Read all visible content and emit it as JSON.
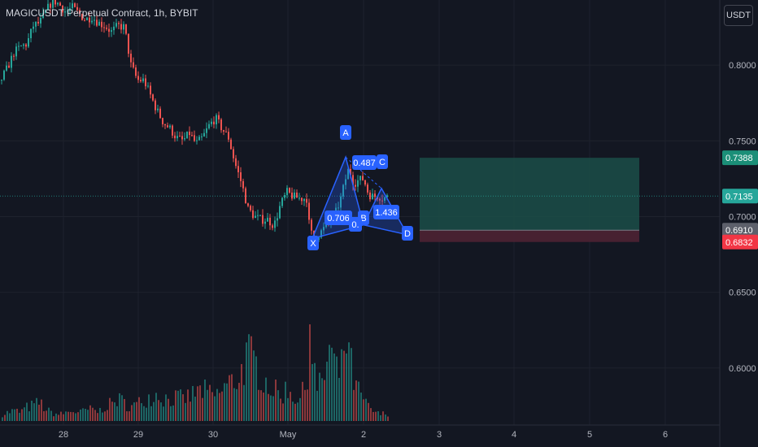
{
  "header": {
    "title": "MAGICUSDT Perpetual Contract, 1h, BYBIT",
    "unit": "USDT"
  },
  "colors": {
    "background": "#131722",
    "grid": "#1e222d",
    "up": "#26a69a",
    "down": "#ef5350",
    "pattern": "#2962ff",
    "target_zone": "#1b4d48",
    "stop_zone": "#4a2233"
  },
  "chart_data": {
    "type": "candlestick",
    "title": "MAGICUSDT Perpetual Contract, 1h, BYBIT",
    "ylim": [
      0.565,
      0.843
    ],
    "y_ticks": [
      "0.8000",
      "0.7500",
      "0.7000",
      "0.6500",
      "0.6000"
    ],
    "x_ticks": [
      "28",
      "29",
      "30",
      "May",
      "2",
      "3",
      "4",
      "5",
      "6"
    ],
    "price_path": [
      [
        0,
        0.79
      ],
      [
        8,
        0.798
      ],
      [
        16,
        0.808
      ],
      [
        24,
        0.812
      ],
      [
        32,
        0.814
      ],
      [
        40,
        0.826
      ],
      [
        48,
        0.828
      ],
      [
        56,
        0.836
      ],
      [
        64,
        0.843
      ],
      [
        72,
        0.84
      ],
      [
        80,
        0.835
      ],
      [
        88,
        0.838
      ],
      [
        96,
        0.834
      ],
      [
        104,
        0.83
      ],
      [
        112,
        0.832
      ],
      [
        120,
        0.828
      ],
      [
        128,
        0.826
      ],
      [
        136,
        0.822
      ],
      [
        144,
        0.826
      ],
      [
        152,
        0.825
      ],
      [
        160,
        0.8
      ],
      [
        168,
        0.79
      ],
      [
        176,
        0.79
      ],
      [
        184,
        0.78
      ],
      [
        192,
        0.77
      ],
      [
        200,
        0.762
      ],
      [
        208,
        0.758
      ],
      [
        216,
        0.752
      ],
      [
        224,
        0.75
      ],
      [
        232,
        0.755
      ],
      [
        240,
        0.748
      ],
      [
        248,
        0.752
      ],
      [
        256,
        0.76
      ],
      [
        264,
        0.765
      ],
      [
        272,
        0.758
      ],
      [
        280,
        0.752
      ],
      [
        288,
        0.735
      ],
      [
        296,
        0.722
      ],
      [
        304,
        0.705
      ],
      [
        312,
        0.7
      ],
      [
        320,
        0.698
      ],
      [
        328,
        0.698
      ],
      [
        336,
        0.694
      ],
      [
        344,
        0.708
      ],
      [
        352,
        0.716
      ],
      [
        360,
        0.713
      ],
      [
        368,
        0.712
      ],
      [
        376,
        0.712
      ],
      [
        380,
        0.69
      ],
      [
        386,
        0.686
      ],
      [
        394,
        0.69
      ],
      [
        402,
        0.695
      ],
      [
        410,
        0.7
      ],
      [
        418,
        0.712
      ],
      [
        424,
        0.725
      ],
      [
        428,
        0.732
      ],
      [
        434,
        0.722
      ],
      [
        440,
        0.724
      ],
      [
        446,
        0.725
      ],
      [
        452,
        0.715
      ],
      [
        458,
        0.713
      ],
      [
        464,
        0.714
      ],
      [
        470,
        0.712
      ],
      [
        476,
        0.713
      ]
    ],
    "volume_bars": [
      [
        0,
        9
      ],
      [
        8,
        13
      ],
      [
        16,
        16
      ],
      [
        24,
        14
      ],
      [
        32,
        21
      ],
      [
        40,
        24
      ],
      [
        48,
        29
      ],
      [
        56,
        17
      ],
      [
        64,
        12
      ],
      [
        72,
        10
      ],
      [
        80,
        13
      ],
      [
        88,
        16
      ],
      [
        96,
        12
      ],
      [
        104,
        17
      ],
      [
        112,
        18
      ],
      [
        120,
        14
      ],
      [
        128,
        23
      ],
      [
        136,
        26
      ],
      [
        144,
        34
      ],
      [
        152,
        28
      ],
      [
        160,
        22
      ],
      [
        168,
        26
      ],
      [
        176,
        34
      ],
      [
        184,
        38
      ],
      [
        192,
        42
      ],
      [
        200,
        36
      ],
      [
        208,
        34
      ],
      [
        216,
        36
      ],
      [
        224,
        34
      ],
      [
        232,
        38
      ],
      [
        240,
        44
      ],
      [
        248,
        48
      ],
      [
        256,
        42
      ],
      [
        264,
        38
      ],
      [
        272,
        48
      ],
      [
        280,
        58
      ],
      [
        288,
        62
      ],
      [
        296,
        78
      ],
      [
        304,
        102
      ],
      [
        312,
        88
      ],
      [
        320,
        74
      ],
      [
        328,
        58
      ],
      [
        336,
        48
      ],
      [
        344,
        38
      ],
      [
        352,
        52
      ],
      [
        360,
        38
      ],
      [
        368,
        34
      ],
      [
        376,
        58
      ],
      [
        380,
        162
      ],
      [
        384,
        98
      ],
      [
        388,
        48
      ],
      [
        396,
        60
      ],
      [
        404,
        112
      ],
      [
        412,
        80
      ],
      [
        418,
        66
      ],
      [
        422,
        124
      ],
      [
        426,
        120
      ],
      [
        430,
        88
      ],
      [
        436,
        52
      ],
      [
        442,
        42
      ],
      [
        448,
        28
      ],
      [
        454,
        18
      ],
      [
        460,
        14
      ],
      [
        466,
        10
      ],
      [
        472,
        12
      ]
    ],
    "harmonic_pattern": {
      "points": [
        {
          "label": "X",
          "x": 384,
          "y": 0.6855
        },
        {
          "label": "A",
          "x": 425,
          "y": 0.7392
        },
        {
          "label": "B",
          "x": 447,
          "y": 0.6945
        },
        {
          "label": "C",
          "x": 469,
          "y": 0.7186
        },
        {
          "label": "D",
          "x": 501,
          "y": 0.688
        }
      ],
      "ratios": [
        "0.706",
        "0.487",
        "1.436",
        "0."
      ]
    },
    "position": {
      "entry": 0.691,
      "target": 0.7388,
      "stop": 0.6832,
      "zone_x": [
        516,
        786
      ]
    },
    "price_labels": [
      {
        "text": "0.7388",
        "value": 0.7388,
        "color": "#1b8f78"
      },
      {
        "text": "0.7135",
        "value": 0.7135,
        "color": "#26a69a"
      },
      {
        "text": "0.6910",
        "value": 0.691,
        "color": "#5d606b"
      },
      {
        "text": "0.6832",
        "value": 0.6832,
        "color": "#f23645"
      }
    ]
  }
}
